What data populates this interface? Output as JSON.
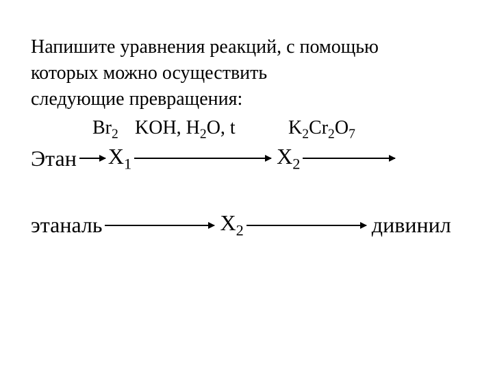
{
  "intro": {
    "line1": "Напишите уравнения реакций, с помощью",
    "line2": "которых можно осуществить",
    "line3": "следующие превращения:"
  },
  "reagents": {
    "r1_base": "Br",
    "r1_sub": "2",
    "r2_base1": "KOH, H",
    "r2_sub1": "2",
    "r2_base2": "O, t",
    "r3_base1": "K",
    "r3_sub1": "2",
    "r3_base2": "Cr",
    "r3_sub2": "2",
    "r3_base3": "O",
    "r3_sub3": "7"
  },
  "chain1": {
    "c1": "Этан",
    "c2_base": "X",
    "c2_sub": "1",
    "c3_base": "X",
    "c3_sub": "2"
  },
  "chain2": {
    "c1": "этаналь",
    "c2_base": "X",
    "c2_sub": "2",
    "c3": "дивинил"
  },
  "styling": {
    "background_color": "#ffffff",
    "text_color": "#000000",
    "font_family": "Times New Roman",
    "intro_fontsize": 28,
    "chain_fontsize": 32
  }
}
